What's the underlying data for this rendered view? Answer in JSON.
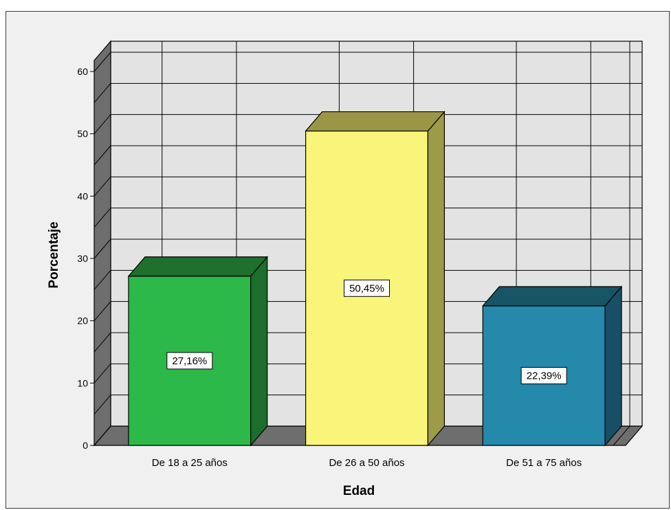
{
  "chart_data": {
    "type": "bar",
    "categories": [
      "De 18 a 25 años",
      "De 26 a 50 años",
      "De 51 a 75 años"
    ],
    "values": [
      27.16,
      50.45,
      22.39
    ],
    "data_labels": [
      "27,16%",
      "50,45%",
      "22,39%"
    ],
    "xlabel": "Edad",
    "ylabel": "Porcentaje",
    "ylim": [
      0,
      60
    ],
    "yticks": [
      0,
      10,
      20,
      30,
      40,
      50,
      60
    ],
    "grid": true,
    "style": "3d",
    "colors": [
      "#2db84a",
      "#f9f57a",
      "#2489ab"
    ],
    "side_colors": [
      "#1d6e2c",
      "#9d9a48",
      "#194f66"
    ],
    "top_colors": [
      "#1f6f2d",
      "#9b9645",
      "#165466"
    ],
    "background": "#f0f0f0",
    "plot_background": "#e3e3e3",
    "wall_color": "#6e6e6e"
  }
}
